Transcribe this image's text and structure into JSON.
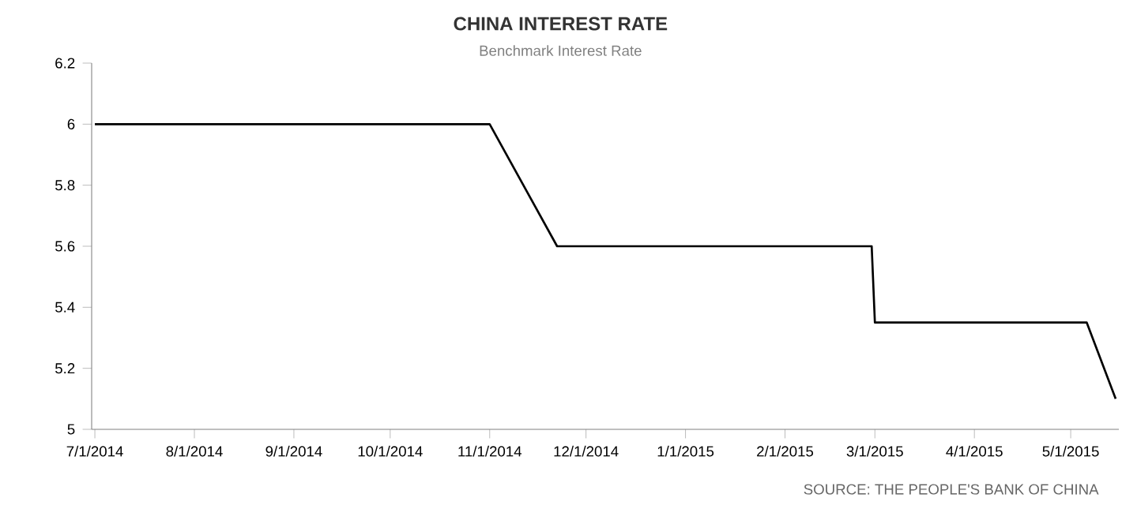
{
  "chart_data": {
    "type": "line",
    "title": "CHINA INTEREST RATE",
    "subtitle": "Benchmark Interest Rate",
    "x": [
      "2014-07-01",
      "2014-11-01",
      "2014-11-22",
      "2015-02-28",
      "2015-03-01",
      "2015-05-06",
      "2015-05-15"
    ],
    "series": [
      {
        "color": "#000000",
        "values": [
          6,
          6,
          5.6,
          5.6,
          5.35,
          5.35,
          5.1
        ]
      }
    ],
    "xlim": [
      "2014-06-30",
      "2015-05-16"
    ],
    "xticks": [
      {
        "value": "2014-07-01",
        "label": "7/1/2014"
      },
      {
        "value": "2014-08-01",
        "label": "8/1/2014"
      },
      {
        "value": "2014-09-01",
        "label": "9/1/2014"
      },
      {
        "value": "2014-10-01",
        "label": "10/1/2014"
      },
      {
        "value": "2014-11-01",
        "label": "11/1/2014"
      },
      {
        "value": "2014-12-01",
        "label": "12/1/2014"
      },
      {
        "value": "2015-01-01",
        "label": "1/1/2015"
      },
      {
        "value": "2015-02-01",
        "label": "2/1/2015"
      },
      {
        "value": "2015-03-01",
        "label": "3/1/2015"
      },
      {
        "value": "2015-04-01",
        "label": "4/1/2015"
      },
      {
        "value": "2015-05-01",
        "label": "5/1/2015"
      }
    ],
    "ylim": [
      5,
      6.2
    ],
    "yticks": [
      5,
      5.2,
      5.4,
      5.6,
      5.8,
      6,
      6.2
    ],
    "grid": false,
    "marker": "none",
    "line_style": "solid",
    "annotations": [
      "SOURCE: THE PEOPLE'S BANK OF CHINA"
    ]
  }
}
